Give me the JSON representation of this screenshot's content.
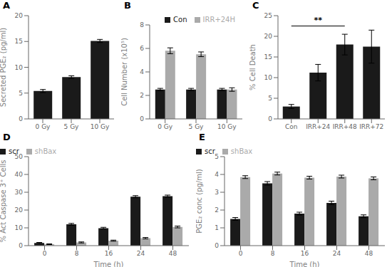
{
  "chart_data": [
    {
      "type": "bar",
      "title": "A",
      "categories": [
        "0 Gy",
        "5 Gy",
        "10 Gy"
      ],
      "values": [
        5.4,
        8.1,
        15.1
      ],
      "errors": [
        0.3,
        0.25,
        0.3
      ],
      "color": "#1a1a1a",
      "ylabel": "Secreted PGE₂ (pg/ml)",
      "ylim": [
        0,
        20
      ],
      "yticks": [
        0,
        5,
        10,
        15,
        20
      ],
      "grid": false
    },
    {
      "type": "bar",
      "title": "B",
      "categories": [
        "0 Gy",
        "5 Gy",
        "10 Gy"
      ],
      "series": [
        {
          "name": "Con",
          "color": "#1a1a1a",
          "values": [
            2.5,
            2.5,
            2.5
          ],
          "errors": [
            0.1,
            0.1,
            0.1
          ]
        },
        {
          "name": "IRR+24H",
          "color": "#aaaaaa",
          "values": [
            5.8,
            5.5,
            2.5
          ],
          "errors": [
            0.25,
            0.2,
            0.15
          ]
        }
      ],
      "ylabel": "Cell Number (x10⁵)",
      "ylim": [
        0,
        8
      ],
      "yticks": [
        0,
        2,
        4,
        6,
        8
      ],
      "legend": "upper right",
      "grid": false
    },
    {
      "type": "bar",
      "title": "C",
      "categories": [
        "Con",
        "IRR+24",
        "IRR+48",
        "IRR+72"
      ],
      "values": [
        3.0,
        11.2,
        18.0,
        17.5
      ],
      "errors": [
        0.5,
        2.0,
        2.5,
        4.0
      ],
      "color": "#1a1a1a",
      "ylabel": "% Cell Death",
      "ylim": [
        0,
        25
      ],
      "yticks": [
        0,
        5,
        10,
        15,
        20,
        25
      ],
      "annotations": [
        {
          "text": "**",
          "from": "Con",
          "to": "IRR+48",
          "y": 22.5
        }
      ],
      "grid": false
    },
    {
      "type": "bar",
      "title": "D",
      "categories": [
        "0",
        "8",
        "16",
        "24",
        "48"
      ],
      "series": [
        {
          "name": "scr",
          "color": "#1a1a1a",
          "values": [
            1.5,
            12.0,
            9.8,
            27.5,
            27.8
          ],
          "errors": [
            0.3,
            0.5,
            0.5,
            0.6,
            0.6
          ]
        },
        {
          "name": "shBax",
          "color": "#aaaaaa",
          "values": [
            0.8,
            1.8,
            2.8,
            4.2,
            10.5
          ],
          "errors": [
            0.2,
            0.3,
            0.3,
            0.4,
            0.5
          ]
        }
      ],
      "ylabel": "% Act Caspase 3⁺ Cells",
      "xlabel": "Time (h)",
      "ylim": [
        0,
        50
      ],
      "yticks": [
        0,
        10,
        20,
        30,
        40,
        50
      ],
      "legend": "upper left",
      "grid": false
    },
    {
      "type": "bar",
      "title": "E",
      "categories": [
        "0",
        "8",
        "16",
        "24",
        "48"
      ],
      "series": [
        {
          "name": "scr",
          "color": "#1a1a1a",
          "values": [
            1.5,
            3.5,
            1.8,
            2.4,
            1.65
          ],
          "errors": [
            0.08,
            0.1,
            0.08,
            0.1,
            0.08
          ]
        },
        {
          "name": "shBax",
          "color": "#aaaaaa",
          "values": [
            3.85,
            4.05,
            3.82,
            3.88,
            3.78
          ],
          "errors": [
            0.08,
            0.08,
            0.08,
            0.08,
            0.08
          ]
        }
      ],
      "ylabel": "PGE₂ conc (pg/ml)",
      "xlabel": "Time (h)",
      "ylim": [
        0,
        5
      ],
      "yticks": [
        0,
        1,
        2,
        3,
        4,
        5
      ],
      "legend": "upper left",
      "grid": false
    }
  ]
}
